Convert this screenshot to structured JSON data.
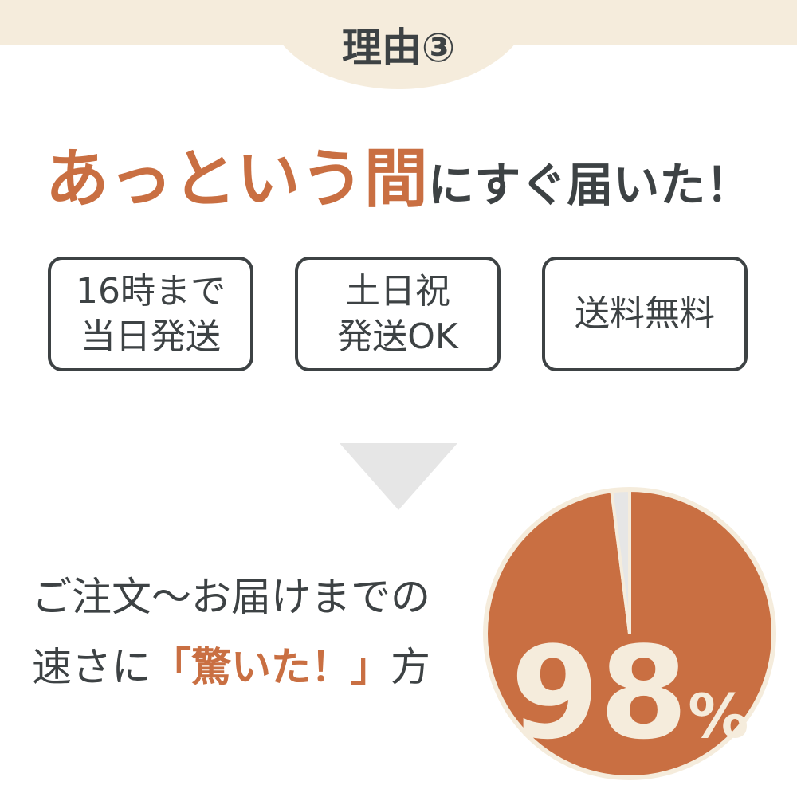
{
  "header": {
    "title": "理由③"
  },
  "headline": {
    "accent": "あっという間",
    "rest": "にすぐ届いた！"
  },
  "features": [
    {
      "line1": "16時まで",
      "line2": "当日発送"
    },
    {
      "line1": "土日祝",
      "line2": "発送OK"
    },
    {
      "line1": "送料無料",
      "line2": ""
    }
  ],
  "message": {
    "line1": "ご注文〜お届けまでの",
    "line2_pre": "速さに",
    "line2_accent": "「驚いた！」",
    "line2_post": "方"
  },
  "chart_data": {
    "type": "pie",
    "values": [
      98,
      2
    ],
    "label_number": "98",
    "label_unit": "%",
    "colors": [
      "#c96f42",
      "#e6e6e6"
    ]
  },
  "colors": {
    "accent": "#c96f42",
    "text": "#3d4244",
    "band": "#f5ecdc",
    "label": "#f5ecdc"
  }
}
